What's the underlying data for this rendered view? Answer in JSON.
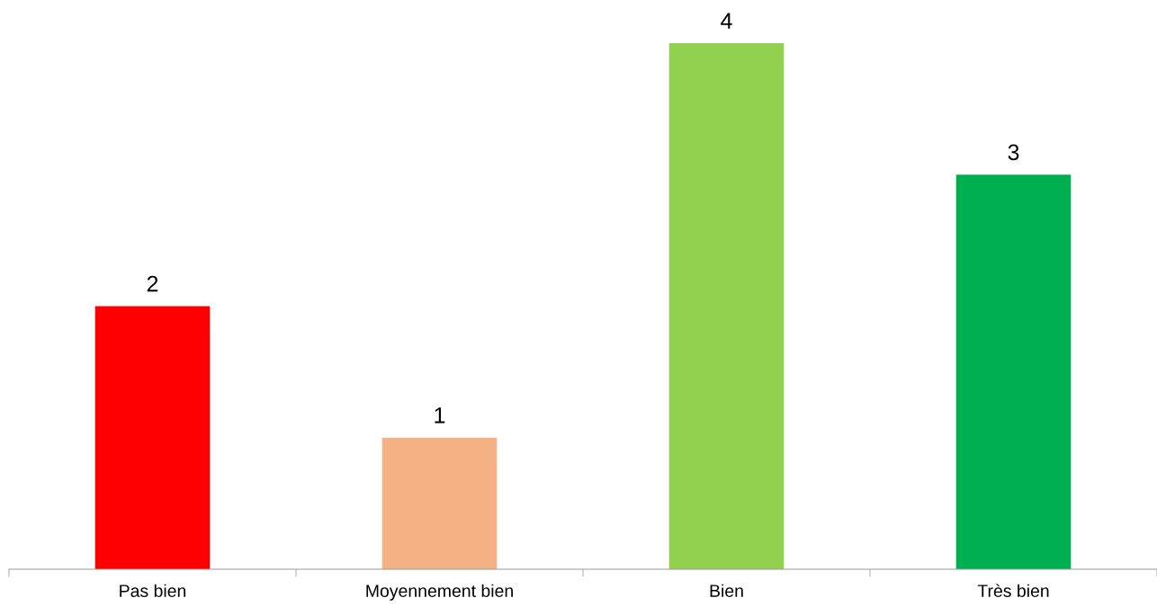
{
  "chart_data": {
    "type": "bar",
    "categories": [
      "Pas bien",
      "Moyennement bien",
      "Bien",
      "Très bien"
    ],
    "values": [
      2,
      1,
      4,
      3
    ],
    "colors": [
      "#ff0000",
      "#f4b183",
      "#92d050",
      "#00b050"
    ],
    "data_labels": true,
    "grid": false,
    "legend": false
  }
}
